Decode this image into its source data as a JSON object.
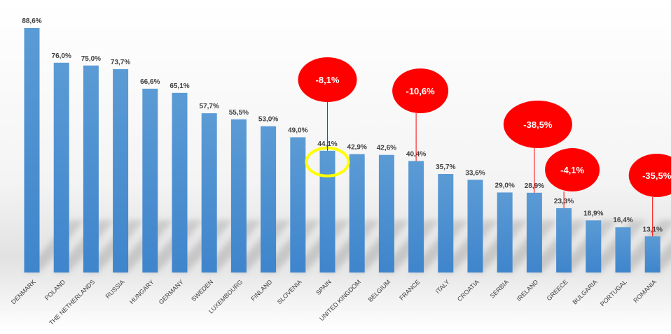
{
  "colors": {
    "bar_top": "#5b9bd5",
    "bar_bottom": "#3f85cc",
    "callout_fill": "#ff0000",
    "callout_line": "#ff0000",
    "highlight_ring": "#ffff00"
  },
  "chart_data": {
    "type": "bar",
    "title": "",
    "xlabel": "",
    "ylabel": "",
    "ylim": [
      0,
      100
    ],
    "grid": false,
    "legend": "none",
    "categories": [
      "DENMARK",
      "POLAND",
      "THE NETHERLANDS",
      "RUSSIA",
      "HUNGARY",
      "GERMANY",
      "SWEDEN",
      "LUXEMBOURG",
      "FINLAND",
      "SLOVENIA",
      "SPAIN",
      "UNITED KINGDOM",
      "BELGIUM",
      "FRANCE",
      "ITALY",
      "CROATIA",
      "SERBIA",
      "IRELAND",
      "GREECE",
      "BULGARIA",
      "PORTUGAL",
      "ROMANIA"
    ],
    "values": [
      88.6,
      76.0,
      75.0,
      73.7,
      66.6,
      65.1,
      57.7,
      55.5,
      53.0,
      49.0,
      44.1,
      42.9,
      42.6,
      40.4,
      35.7,
      33.6,
      29.0,
      28.9,
      23.3,
      18.9,
      16.4,
      13.1
    ],
    "data_labels": [
      "88,6%",
      "76,0%",
      "75,0%",
      "73,7%",
      "66,6%",
      "65,1%",
      "57,7%",
      "55,5%",
      "53,0%",
      "49,0%",
      "44,1%",
      "42,9%",
      "42,6%",
      "40,4%",
      "35,7%",
      "33,6%",
      "29,0%",
      "28,9%",
      "23,3%",
      "18,9%",
      "16,4%",
      "13,1%"
    ],
    "annotations": [
      {
        "category": "SPAIN",
        "text": "-8,1%"
      },
      {
        "category": "FRANCE",
        "text": "-10,6%"
      },
      {
        "category": "IRELAND",
        "text": "-38,5%"
      },
      {
        "category": "GREECE",
        "text": "-4,1%"
      },
      {
        "category": "ROMANIA",
        "text": "-35,5%"
      }
    ],
    "highlight": {
      "category": "SPAIN",
      "shape": "yellow-ring"
    }
  }
}
